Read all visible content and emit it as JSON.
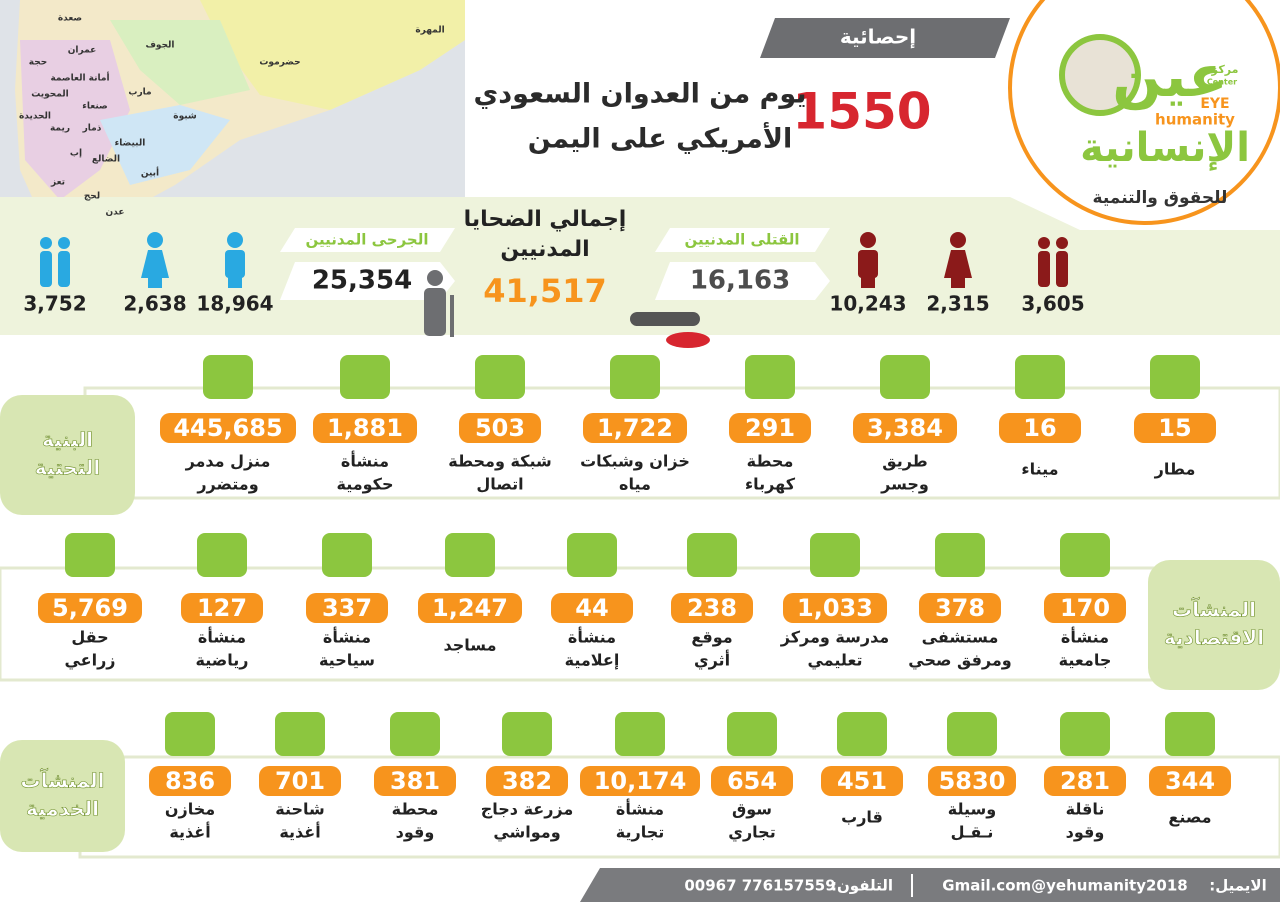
{
  "header": {
    "tag": "إحصائية",
    "days": "1550",
    "title": [
      "يوم من العدوان السعودي",
      "الأمريكي على اليمن"
    ]
  },
  "logo": {
    "name": "عين",
    "name2": "الإنسانية",
    "en1": "EYE",
    "en2": "humanity",
    "center_ar": "مركز",
    "center_en": "Center",
    "subtitle": "للحقوق والتنمية"
  },
  "map": {
    "labels": [
      "صعدة",
      "الجوف",
      "المهرة",
      "حضرموت",
      "حجة",
      "عمران",
      "أمانة العاصمة",
      "المحويت",
      "صنعاء",
      "مارب",
      "الحديدة",
      "ريمة",
      "ذمار",
      "شبوة",
      "البيضاء",
      "إب",
      "الضالع",
      "أبين",
      "تعز",
      "لحج",
      "عدن"
    ]
  },
  "victims": {
    "killed": {
      "label": "القتلى المدنيين",
      "total": "16,163",
      "men": "10,243",
      "women": "2,315",
      "children": "3,605"
    },
    "wounded": {
      "label": "الجرحى المدنيين",
      "total": "25,354",
      "men": "18,964",
      "women": "2,638",
      "children": "3,752"
    },
    "total": {
      "label": [
        "إجمالي الضحايا",
        "المدنيين"
      ],
      "value": "41,517"
    }
  },
  "sections": [
    {
      "title": [
        "البنية",
        "التحتية"
      ],
      "items": [
        {
          "value": "15",
          "label": [
            "مطار"
          ]
        },
        {
          "value": "16",
          "label": [
            "ميناء"
          ]
        },
        {
          "value": "3,384",
          "label": [
            "طريق",
            "وجسر"
          ]
        },
        {
          "value": "291",
          "label": [
            "محطة",
            "كهرباء"
          ]
        },
        {
          "value": "1,722",
          "label": [
            "خزان وشبكات",
            "مياه"
          ]
        },
        {
          "value": "503",
          "label": [
            "شبكة ومحطة",
            "اتصال"
          ]
        },
        {
          "value": "1,881",
          "label": [
            "منشأة",
            "حكومية"
          ]
        },
        {
          "value": "445,685",
          "label": [
            "منزل مدمر",
            "ومتضرر"
          ]
        }
      ]
    },
    {
      "title": [
        "المنشآت",
        "الاقتصادية"
      ],
      "items": [
        {
          "value": "170",
          "label": [
            "منشأة",
            "جامعية"
          ]
        },
        {
          "value": "378",
          "label": [
            "مستشفى",
            "ومرفق صحي"
          ]
        },
        {
          "value": "1,033",
          "label": [
            "مدرسة ومركز",
            "تعليمي"
          ]
        },
        {
          "value": "238",
          "label": [
            "موقع",
            "أثري"
          ]
        },
        {
          "value": "44",
          "label": [
            "منشأة",
            "إعلامية"
          ]
        },
        {
          "value": "1,247",
          "label": [
            "مساجد"
          ]
        },
        {
          "value": "337",
          "label": [
            "منشأة",
            "سياحية"
          ]
        },
        {
          "value": "127",
          "label": [
            "منشأة",
            "رياضية"
          ]
        },
        {
          "value": "5,769",
          "label": [
            "حقل",
            "زراعي"
          ]
        }
      ]
    },
    {
      "title": [
        "المنشآت",
        "الخدمية"
      ],
      "items": [
        {
          "value": "344",
          "label": [
            "مصنع"
          ]
        },
        {
          "value": "281",
          "label": [
            "ناقلة",
            "وقود"
          ]
        },
        {
          "value": "5830",
          "label": [
            "وسيلة",
            "نـقـل"
          ]
        },
        {
          "value": "451",
          "label": [
            "قارب"
          ]
        },
        {
          "value": "654",
          "label": [
            "سوق",
            "تجاري"
          ]
        },
        {
          "value": "10,174",
          "label": [
            "منشأة",
            "تجارية"
          ]
        },
        {
          "value": "382",
          "label": [
            "مزرعة دجاج",
            "ومواشي"
          ]
        },
        {
          "value": "381",
          "label": [
            "محطة",
            "وقود"
          ]
        },
        {
          "value": "701",
          "label": [
            "شاحنة",
            "أغذية"
          ]
        },
        {
          "value": "836",
          "label": [
            "مخازن",
            "أغذية"
          ]
        }
      ]
    }
  ],
  "footer": {
    "email_label": "الايميل:",
    "email": "Gmail.com@yehumanity2018",
    "phone_label": "التلفون:",
    "phone": "00967 776157559"
  }
}
